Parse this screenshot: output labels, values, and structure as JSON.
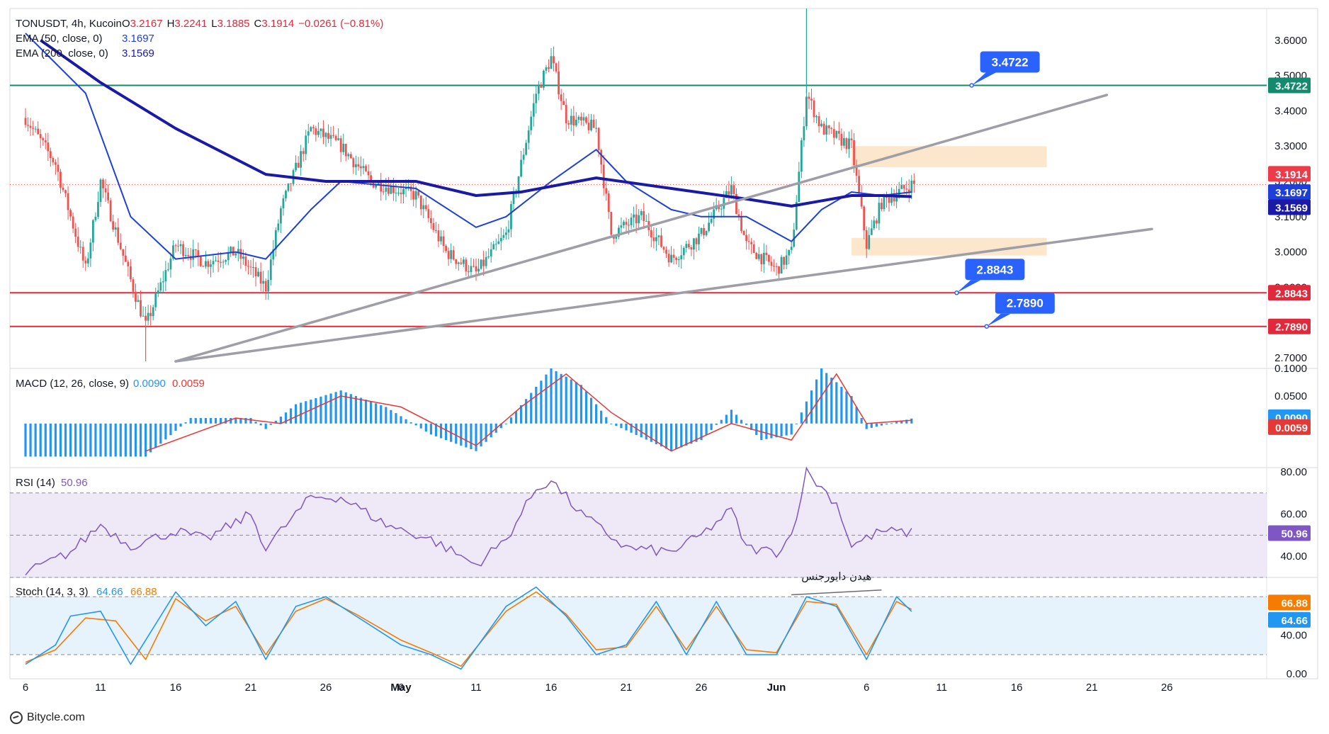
{
  "header": {
    "symbol": "TONUSDT, 4h, Kucoin",
    "ohlc": [
      {
        "k": "O",
        "v": "3.2167"
      },
      {
        "k": "H",
        "v": "3.2241"
      },
      {
        "k": "L",
        "v": "3.1885"
      },
      {
        "k": "C",
        "v": "3.1914"
      }
    ],
    "change": "−0.0261 (−0.81%)",
    "ema50_label": "EMA (50, close, 0)",
    "ema50_value": "3.1697",
    "ema200_label": "EMA (200, close, 0)",
    "ema200_value": "3.1569"
  },
  "footer": {
    "brand": "Bitycle.com"
  },
  "colors": {
    "up": "#26a69a",
    "down": "#ef5350",
    "ema50": "#1e40d8",
    "ema200": "#1a1aa6",
    "trend": "#9e9ea6",
    "zone": "#fbe3c4",
    "resistance": "#138a6e",
    "support": "#e0293a",
    "callout": "#2962ff",
    "macd": "#2196f3",
    "signal": "#e53935",
    "rsi": "#7e57c2",
    "stoch_k": "#2196f3",
    "stoch_d": "#f57c00"
  },
  "chart_data": [
    {
      "type": "candlestick",
      "name": "price",
      "ylim": [
        2.67,
        3.69
      ],
      "yticks": [
        "3.6000",
        "3.5000",
        "3.4000",
        "3.3000",
        "3.2000",
        "3.1000",
        "3.0000",
        "2.9000",
        "2.8000",
        "2.7000"
      ],
      "xticks": [
        "6",
        "11",
        "16",
        "21",
        "26",
        "May",
        "6",
        "11",
        "16",
        "21",
        "26",
        "Jun",
        "6",
        "11",
        "16",
        "21",
        "26"
      ],
      "candles_from": "2024-04-06",
      "candles_to": "2024-06-04",
      "interval": "4h",
      "path_points": [
        {
          "date": "Apr 6",
          "close": 3.38
        },
        {
          "date": "Apr 8",
          "close": 3.25
        },
        {
          "date": "Apr 10",
          "close": 2.95
        },
        {
          "date": "Apr 11",
          "close": 3.2
        },
        {
          "date": "Apr 13",
          "close": 2.92
        },
        {
          "date": "Apr 14",
          "close": 2.79
        },
        {
          "date": "Apr 16",
          "close": 3.02
        },
        {
          "date": "Apr 18",
          "close": 2.97
        },
        {
          "date": "Apr 20",
          "close": 3.0
        },
        {
          "date": "Apr 22",
          "close": 2.9
        },
        {
          "date": "Apr 23",
          "close": 3.12
        },
        {
          "date": "Apr 25",
          "close": 3.35
        },
        {
          "date": "Apr 27",
          "close": 3.3
        },
        {
          "date": "Apr 29",
          "close": 3.2
        },
        {
          "date": "May 2",
          "close": 3.16
        },
        {
          "date": "May 4",
          "close": 3.0
        },
        {
          "date": "May 6",
          "close": 2.94
        },
        {
          "date": "May 8",
          "close": 3.05
        },
        {
          "date": "May 10",
          "close": 3.45
        },
        {
          "date": "May 11",
          "close": 3.55
        },
        {
          "date": "May 12",
          "close": 3.38
        },
        {
          "date": "May 14",
          "close": 3.35
        },
        {
          "date": "May 15",
          "close": 3.05
        },
        {
          "date": "May 17",
          "close": 3.1
        },
        {
          "date": "May 19",
          "close": 2.98
        },
        {
          "date": "May 21",
          "close": 3.05
        },
        {
          "date": "May 23",
          "close": 3.18
        },
        {
          "date": "May 24",
          "close": 3.02
        },
        {
          "date": "May 26",
          "close": 2.95
        },
        {
          "date": "May 27",
          "close": 3.0
        },
        {
          "date": "May 28",
          "close": 3.45
        },
        {
          "date": "May 29",
          "close": 3.35
        },
        {
          "date": "May 31",
          "close": 3.3
        },
        {
          "date": "Jun 1",
          "close": 3.02
        },
        {
          "date": "Jun 2",
          "close": 3.14
        },
        {
          "date": "Jun 4",
          "close": 3.1914
        }
      ],
      "ema50": [
        {
          "date": "Apr 6",
          "value": 3.62
        },
        {
          "date": "Apr 10",
          "value": 3.45
        },
        {
          "date": "Apr 13",
          "value": 3.1
        },
        {
          "date": "Apr 16",
          "value": 2.98
        },
        {
          "date": "Apr 20",
          "value": 3.0
        },
        {
          "date": "Apr 22",
          "value": 2.98
        },
        {
          "date": "Apr 25",
          "value": 3.12
        },
        {
          "date": "Apr 27",
          "value": 3.2
        },
        {
          "date": "May 2",
          "value": 3.18
        },
        {
          "date": "May 6",
          "value": 3.07
        },
        {
          "date": "May 8",
          "value": 3.1
        },
        {
          "date": "May 11",
          "value": 3.2
        },
        {
          "date": "May 14",
          "value": 3.29
        },
        {
          "date": "May 16",
          "value": 3.2
        },
        {
          "date": "May 19",
          "value": 3.12
        },
        {
          "date": "May 21",
          "value": 3.1
        },
        {
          "date": "May 24",
          "value": 3.1
        },
        {
          "date": "May 27",
          "value": 3.03
        },
        {
          "date": "May 29",
          "value": 3.12
        },
        {
          "date": "May 31",
          "value": 3.17
        },
        {
          "date": "Jun 2",
          "value": 3.16
        },
        {
          "date": "Jun 4",
          "value": 3.1697
        }
      ],
      "ema200": [
        {
          "date": "Apr 7",
          "value": 3.6
        },
        {
          "date": "Apr 11",
          "value": 3.48
        },
        {
          "date": "Apr 16",
          "value": 3.35
        },
        {
          "date": "Apr 22",
          "value": 3.22
        },
        {
          "date": "Apr 26",
          "value": 3.2
        },
        {
          "date": "May 2",
          "value": 3.2
        },
        {
          "date": "May 6",
          "value": 3.16
        },
        {
          "date": "May 9",
          "value": 3.17
        },
        {
          "date": "May 14",
          "value": 3.21
        },
        {
          "date": "May 19",
          "value": 3.18
        },
        {
          "date": "May 24",
          "value": 3.15
        },
        {
          "date": "May 27",
          "value": 3.13
        },
        {
          "date": "May 31",
          "value": 3.16
        },
        {
          "date": "Jun 2",
          "value": 3.16
        },
        {
          "date": "Jun 4",
          "value": 3.1569
        }
      ],
      "levels": [
        {
          "value": 3.4722,
          "label": "3.4722",
          "kind": "resistance"
        },
        {
          "value": 2.8843,
          "label": "2.8843",
          "kind": "support"
        },
        {
          "value": 2.789,
          "label": "2.7890",
          "kind": "support"
        }
      ],
      "callouts": [
        {
          "text": "3.4722",
          "value": 3.4722,
          "date": "Jun 8"
        },
        {
          "text": "2.8843",
          "value": 2.8843,
          "date": "Jun 7"
        },
        {
          "text": "2.7890",
          "value": 2.789,
          "date": "Jun 9"
        }
      ],
      "trendlines": [
        {
          "from": {
            "date": "Apr 16",
            "value": 2.69
          },
          "to": {
            "date": "Jun 17",
            "value": 3.445
          }
        },
        {
          "from": {
            "date": "Apr 16",
            "value": 2.69
          },
          "to": {
            "date": "Jun 20",
            "value": 3.065
          }
        }
      ],
      "zones": [
        {
          "from": "May 31",
          "to": "Jun 13",
          "top": 3.3,
          "bottom": 3.24
        },
        {
          "from": "May 31",
          "to": "Jun 13",
          "top": 3.04,
          "bottom": 2.99
        }
      ],
      "last_price": "3.1914",
      "price_labels": [
        "3.4722",
        "3.1914",
        "3.1697",
        "3.1569",
        "2.8843",
        "2.7890"
      ]
    },
    {
      "type": "bar",
      "name": "MACD (12, 26, close, 9)",
      "title": "MACD (12, 26, close, 9)",
      "macd_value": "0.0090",
      "signal_value": "0.0059",
      "ylim": [
        -0.08,
        0.1
      ],
      "yticks": [
        "0.1000",
        "0.0500"
      ],
      "histogram_points": [
        {
          "date": "Apr 6",
          "value": -0.06
        },
        {
          "date": "Apr 14",
          "value": -0.06
        },
        {
          "date": "Apr 17",
          "value": 0.01
        },
        {
          "date": "Apr 21",
          "value": 0.01
        },
        {
          "date": "Apr 22",
          "value": -0.01
        },
        {
          "date": "Apr 24",
          "value": 0.035
        },
        {
          "date": "Apr 27",
          "value": 0.06
        },
        {
          "date": "Apr 30",
          "value": 0.03
        },
        {
          "date": "May 3",
          "value": -0.02
        },
        {
          "date": "May 6",
          "value": -0.05
        },
        {
          "date": "May 8",
          "value": 0.0
        },
        {
          "date": "May 11",
          "value": 0.1
        },
        {
          "date": "May 13",
          "value": 0.07
        },
        {
          "date": "May 15",
          "value": 0.0
        },
        {
          "date": "May 19",
          "value": -0.05
        },
        {
          "date": "May 21",
          "value": -0.03
        },
        {
          "date": "May 23",
          "value": 0.025
        },
        {
          "date": "May 25",
          "value": -0.03
        },
        {
          "date": "May 27",
          "value": -0.02
        },
        {
          "date": "May 29",
          "value": 0.1
        },
        {
          "date": "May 31",
          "value": 0.05
        },
        {
          "date": "Jun 1",
          "value": -0.01
        },
        {
          "date": "Jun 4",
          "value": 0.009
        }
      ],
      "signal_points": [
        {
          "date": "Apr 14",
          "value": -0.05
        },
        {
          "date": "Apr 20",
          "value": 0.01
        },
        {
          "date": "Apr 23",
          "value": 0.0
        },
        {
          "date": "Apr 27",
          "value": 0.05
        },
        {
          "date": "May 1",
          "value": 0.03
        },
        {
          "date": "May 6",
          "value": -0.04
        },
        {
          "date": "May 9",
          "value": 0.03
        },
        {
          "date": "May 12",
          "value": 0.09
        },
        {
          "date": "May 15",
          "value": 0.02
        },
        {
          "date": "May 19",
          "value": -0.05
        },
        {
          "date": "May 23",
          "value": 0.0
        },
        {
          "date": "May 27",
          "value": -0.03
        },
        {
          "date": "May 30",
          "value": 0.09
        },
        {
          "date": "Jun 1",
          "value": 0.0
        },
        {
          "date": "Jun 4",
          "value": 0.0059
        }
      ]
    },
    {
      "type": "line",
      "name": "RSI (14)",
      "title": "RSI (14)",
      "value": "50.96",
      "ylim": [
        30,
        82
      ],
      "yticks": [
        "80.00",
        "60.00",
        "40.00"
      ],
      "band": [
        30,
        70
      ],
      "midline": 50,
      "points": [
        {
          "date": "Apr 6",
          "value": 32
        },
        {
          "date": "Apr 9",
          "value": 42
        },
        {
          "date": "Apr 11",
          "value": 55
        },
        {
          "date": "Apr 13",
          "value": 45
        },
        {
          "date": "Apr 16",
          "value": 52
        },
        {
          "date": "Apr 18",
          "value": 48
        },
        {
          "date": "Apr 21",
          "value": 60
        },
        {
          "date": "Apr 22",
          "value": 44
        },
        {
          "date": "Apr 25",
          "value": 68
        },
        {
          "date": "Apr 27",
          "value": 68
        },
        {
          "date": "Apr 30",
          "value": 55
        },
        {
          "date": "May 3",
          "value": 48
        },
        {
          "date": "May 6",
          "value": 36
        },
        {
          "date": "May 8",
          "value": 48
        },
        {
          "date": "May 10",
          "value": 72
        },
        {
          "date": "May 11",
          "value": 76
        },
        {
          "date": "May 13",
          "value": 60
        },
        {
          "date": "May 16",
          "value": 44
        },
        {
          "date": "May 19",
          "value": 42
        },
        {
          "date": "May 21",
          "value": 50
        },
        {
          "date": "May 23",
          "value": 62
        },
        {
          "date": "May 24",
          "value": 44
        },
        {
          "date": "May 26",
          "value": 42
        },
        {
          "date": "May 27",
          "value": 50
        },
        {
          "date": "May 28",
          "value": 80
        },
        {
          "date": "May 30",
          "value": 65
        },
        {
          "date": "May 31",
          "value": 45
        },
        {
          "date": "Jun 2",
          "value": 52
        },
        {
          "date": "Jun 4",
          "value": 50.96
        }
      ]
    },
    {
      "type": "line",
      "name": "Stoch (14, 3, 3)",
      "title": "Stoch (14, 3, 3)",
      "k_value": "64.66",
      "d_value": "66.88",
      "ylim": [
        -5,
        100
      ],
      "yticks": [
        "40.00",
        "0.00"
      ],
      "band": [
        20,
        80
      ],
      "annotation": "هیدن دایورجنس",
      "divergence": {
        "from": {
          "date": "May 27",
          "value": 82
        },
        "to": {
          "date": "Jun 2",
          "value": 87
        }
      },
      "k_points": [
        {
          "date": "Apr 6",
          "value": 10
        },
        {
          "date": "Apr 8",
          "value": 30
        },
        {
          "date": "Apr 9",
          "value": 60
        },
        {
          "date": "Apr 11",
          "value": 65
        },
        {
          "date": "Apr 13",
          "value": 10
        },
        {
          "date": "Apr 15",
          "value": 60
        },
        {
          "date": "Apr 16",
          "value": 85
        },
        {
          "date": "Apr 18",
          "value": 50
        },
        {
          "date": "Apr 20",
          "value": 75
        },
        {
          "date": "Apr 22",
          "value": 15
        },
        {
          "date": "Apr 24",
          "value": 70
        },
        {
          "date": "Apr 26",
          "value": 80
        },
        {
          "date": "Apr 28",
          "value": 60
        },
        {
          "date": "May 1",
          "value": 30
        },
        {
          "date": "May 3",
          "value": 20
        },
        {
          "date": "May 5",
          "value": 5
        },
        {
          "date": "May 8",
          "value": 70
        },
        {
          "date": "May 10",
          "value": 90
        },
        {
          "date": "May 12",
          "value": 60
        },
        {
          "date": "May 14",
          "value": 20
        },
        {
          "date": "May 16",
          "value": 30
        },
        {
          "date": "May 18",
          "value": 75
        },
        {
          "date": "May 20",
          "value": 20
        },
        {
          "date": "May 22",
          "value": 75
        },
        {
          "date": "May 24",
          "value": 20
        },
        {
          "date": "May 26",
          "value": 20
        },
        {
          "date": "May 28",
          "value": 80
        },
        {
          "date": "May 30",
          "value": 70
        },
        {
          "date": "Jun 1",
          "value": 15
        },
        {
          "date": "Jun 3",
          "value": 80
        },
        {
          "date": "Jun 4",
          "value": 64.66
        }
      ],
      "d_points": [
        {
          "date": "Apr 6",
          "value": 12
        },
        {
          "date": "Apr 8",
          "value": 25
        },
        {
          "date": "Apr 10",
          "value": 58
        },
        {
          "date": "Apr 12",
          "value": 55
        },
        {
          "date": "Apr 14",
          "value": 15
        },
        {
          "date": "Apr 16",
          "value": 78
        },
        {
          "date": "Apr 18",
          "value": 55
        },
        {
          "date": "Apr 20",
          "value": 70
        },
        {
          "date": "Apr 22",
          "value": 20
        },
        {
          "date": "Apr 24",
          "value": 65
        },
        {
          "date": "Apr 26",
          "value": 78
        },
        {
          "date": "Apr 28",
          "value": 62
        },
        {
          "date": "May 1",
          "value": 35
        },
        {
          "date": "May 3",
          "value": 22
        },
        {
          "date": "May 5",
          "value": 8
        },
        {
          "date": "May 8",
          "value": 65
        },
        {
          "date": "May 10",
          "value": 85
        },
        {
          "date": "May 12",
          "value": 62
        },
        {
          "date": "May 14",
          "value": 25
        },
        {
          "date": "May 16",
          "value": 28
        },
        {
          "date": "May 18",
          "value": 70
        },
        {
          "date": "May 20",
          "value": 25
        },
        {
          "date": "May 22",
          "value": 70
        },
        {
          "date": "May 24",
          "value": 25
        },
        {
          "date": "May 26",
          "value": 22
        },
        {
          "date": "May 28",
          "value": 75
        },
        {
          "date": "May 30",
          "value": 72
        },
        {
          "date": "Jun 1",
          "value": 20
        },
        {
          "date": "Jun 3",
          "value": 75
        },
        {
          "date": "Jun 4",
          "value": 66.88
        }
      ]
    }
  ]
}
